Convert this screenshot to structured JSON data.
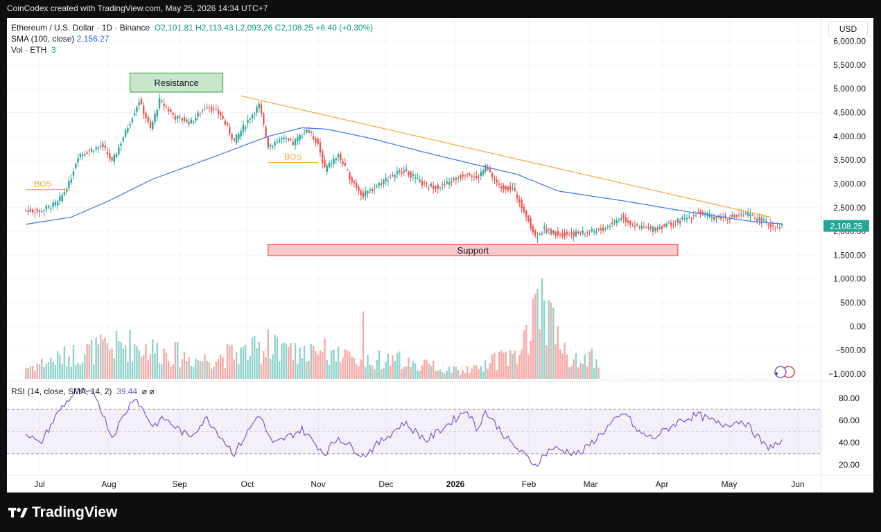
{
  "header": {
    "created_text": "CoinCodex created with TradingView.com, May 25, 2026 14:34 UTC+7"
  },
  "legend": {
    "symbol": "Ethereum / U.S. Dollar · 1D · Binance",
    "ohlc": "O2,101.81  H2,113.43  L2,093.26  C2,108.25  +6.40 (+0.30%)",
    "sma_label": "SMA (100, close)",
    "sma_value": "2,156.27",
    "vol_label": "Vol · ETH",
    "vol_value": "3",
    "rsi_label": "RSI (14, close, SMA, 14, 2)",
    "rsi_value": "39.44",
    "rsi_icons": "⌀ ⌀"
  },
  "currency_button": "USD",
  "brand": {
    "name": "TradingView",
    "logo_icon": "tradingview-logo-icon"
  },
  "colors": {
    "up": "#26a69a",
    "down": "#ef5350",
    "sma": "#4a7bea",
    "trend": "#f7a63b",
    "rsi": "#7e57c2",
    "support": "#ef5350",
    "resistance": "#4caf50"
  },
  "chart_data": [
    {
      "type": "candlestick",
      "title": "Ethereum / U.S. Dollar · 1D · Binance",
      "ylabel": "USD",
      "ylim": [
        -1000,
        6000
      ],
      "y_ticks": [
        "6,000.00",
        "5,500.00",
        "5,000.00",
        "4,500.00",
        "4,000.00",
        "3,500.00",
        "3,000.00",
        "2,500.00",
        "2,000.00",
        "1,500.00",
        "1,000.00",
        "500.00",
        "0.00",
        "−500.00",
        "−1,000.00"
      ],
      "x_ticks": [
        "Jul",
        "Aug",
        "Sep",
        "Oct",
        "Nov",
        "Dec",
        "2026",
        "Feb",
        "Mar",
        "Apr",
        "May",
        "Jun"
      ],
      "close_anchors": [
        {
          "date": "2025-06-25",
          "close": 2450
        },
        {
          "date": "2025-07-01",
          "close": 2420
        },
        {
          "date": "2025-07-09",
          "close": 2600
        },
        {
          "date": "2025-07-14",
          "close": 3000
        },
        {
          "date": "2025-07-18",
          "close": 3600
        },
        {
          "date": "2025-07-23",
          "close": 3700
        },
        {
          "date": "2025-07-29",
          "close": 3800
        },
        {
          "date": "2025-08-02",
          "close": 3450
        },
        {
          "date": "2025-08-09",
          "close": 4200
        },
        {
          "date": "2025-08-14",
          "close": 4750
        },
        {
          "date": "2025-08-19",
          "close": 4150
        },
        {
          "date": "2025-08-23",
          "close": 4750
        },
        {
          "date": "2025-08-30",
          "close": 4400
        },
        {
          "date": "2025-09-06",
          "close": 4300
        },
        {
          "date": "2025-09-13",
          "close": 4650
        },
        {
          "date": "2025-09-19",
          "close": 4450
        },
        {
          "date": "2025-09-25",
          "close": 3900
        },
        {
          "date": "2025-10-02",
          "close": 4400
        },
        {
          "date": "2025-10-06",
          "close": 4650
        },
        {
          "date": "2025-10-10",
          "close": 3800
        },
        {
          "date": "2025-10-16",
          "close": 3950
        },
        {
          "date": "2025-10-21",
          "close": 3850
        },
        {
          "date": "2025-10-27",
          "close": 4150
        },
        {
          "date": "2025-11-01",
          "close": 3850
        },
        {
          "date": "2025-11-04",
          "close": 3300
        },
        {
          "date": "2025-11-10",
          "close": 3600
        },
        {
          "date": "2025-11-15",
          "close": 3150
        },
        {
          "date": "2025-11-21",
          "close": 2750
        },
        {
          "date": "2025-11-28",
          "close": 3000
        },
        {
          "date": "2025-12-03",
          "close": 3150
        },
        {
          "date": "2025-12-09",
          "close": 3300
        },
        {
          "date": "2025-12-14",
          "close": 3100
        },
        {
          "date": "2025-12-19",
          "close": 2950
        },
        {
          "date": "2025-12-26",
          "close": 2950
        },
        {
          "date": "2026-01-06",
          "close": 3250
        },
        {
          "date": "2026-01-10",
          "close": 3100
        },
        {
          "date": "2026-01-14",
          "close": 3350
        },
        {
          "date": "2026-01-20",
          "close": 2950
        },
        {
          "date": "2026-01-26",
          "close": 2900
        },
        {
          "date": "2026-01-31",
          "close": 2450
        },
        {
          "date": "2026-02-05",
          "close": 1900
        },
        {
          "date": "2026-02-09",
          "close": 2050
        },
        {
          "date": "2026-02-15",
          "close": 1950
        },
        {
          "date": "2026-02-22",
          "close": 1950
        },
        {
          "date": "2026-03-01",
          "close": 1980
        },
        {
          "date": "2026-03-07",
          "close": 2050
        },
        {
          "date": "2026-03-15",
          "close": 2300
        },
        {
          "date": "2026-03-22",
          "close": 2100
        },
        {
          "date": "2026-03-29",
          "close": 2050
        },
        {
          "date": "2026-04-05",
          "close": 2150
        },
        {
          "date": "2026-04-12",
          "close": 2250
        },
        {
          "date": "2026-04-18",
          "close": 2400
        },
        {
          "date": "2026-04-24",
          "close": 2300
        },
        {
          "date": "2026-05-02",
          "close": 2300
        },
        {
          "date": "2026-05-10",
          "close": 2350
        },
        {
          "date": "2026-05-15",
          "close": 2250
        },
        {
          "date": "2026-05-20",
          "close": 2120
        },
        {
          "date": "2026-05-25",
          "close": 2108.25
        }
      ],
      "last_price": "2,108.25",
      "sma_anchors": [
        {
          "date": "2025-06-25",
          "value": 2150
        },
        {
          "date": "2025-07-15",
          "value": 2300
        },
        {
          "date": "2025-08-01",
          "value": 2650
        },
        {
          "date": "2025-08-20",
          "value": 3100
        },
        {
          "date": "2025-09-15",
          "value": 3550
        },
        {
          "date": "2025-10-10",
          "value": 4000
        },
        {
          "date": "2025-10-25",
          "value": 4180
        },
        {
          "date": "2025-11-05",
          "value": 4150
        },
        {
          "date": "2025-11-25",
          "value": 3950
        },
        {
          "date": "2025-12-15",
          "value": 3700
        },
        {
          "date": "2026-01-10",
          "value": 3400
        },
        {
          "date": "2026-01-28",
          "value": 3200
        },
        {
          "date": "2026-02-15",
          "value": 2850
        },
        {
          "date": "2026-03-15",
          "value": 2650
        },
        {
          "date": "2026-04-15",
          "value": 2400
        },
        {
          "date": "2026-05-10",
          "value": 2220
        },
        {
          "date": "2026-05-25",
          "value": 2156.27
        }
      ],
      "annotations": [
        {
          "type": "box",
          "label": "Resistance",
          "from": "2025-08-10",
          "to": "2025-09-20",
          "y_top": 5330,
          "y_bottom": 4930
        },
        {
          "type": "box",
          "label": "Support",
          "from": "2025-10-10",
          "to": "2026-04-09",
          "y_top": 1730,
          "y_bottom": 1490
        },
        {
          "type": "line",
          "label": "BOS",
          "from": "2025-06-25",
          "to": "2025-07-14",
          "y": 2880
        },
        {
          "type": "line",
          "label": "BOS",
          "from": "2025-10-10",
          "to": "2025-11-01",
          "y": 3450
        },
        {
          "type": "trendline",
          "label": "",
          "from": {
            "date": "2025-09-28",
            "value": 4850
          },
          "to": {
            "date": "2026-05-20",
            "value": 2300
          }
        }
      ]
    },
    {
      "type": "bar",
      "title": "Vol · ETH",
      "unit": "ETH",
      "note": "relative daily volume, scaled 0-1",
      "anchors": [
        {
          "date": "2025-06-25",
          "value": 0.15
        },
        {
          "date": "2025-07-20",
          "value": 0.35
        },
        {
          "date": "2025-08-10",
          "value": 0.45
        },
        {
          "date": "2025-09-10",
          "value": 0.25
        },
        {
          "date": "2025-10-10",
          "value": 0.4
        },
        {
          "date": "2025-11-05",
          "value": 0.3
        },
        {
          "date": "2025-12-15",
          "value": 0.22
        },
        {
          "date": "2026-01-05",
          "value": 0.1
        },
        {
          "date": "2026-01-30",
          "value": 0.35
        },
        {
          "date": "2026-02-06",
          "value": 1.0
        },
        {
          "date": "2026-02-20",
          "value": 0.3
        },
        {
          "date": "2026-03-05",
          "value": 0.25
        }
      ],
      "spikes": [
        {
          "date": "2025-10-10",
          "value": 0.55
        },
        {
          "date": "2025-11-04",
          "value": 0.45
        },
        {
          "date": "2025-11-21",
          "value": 0.75
        },
        {
          "date": "2026-02-01",
          "value": 0.6
        },
        {
          "date": "2026-02-04",
          "value": 0.9
        },
        {
          "date": "2026-02-06",
          "value": 1.0
        },
        {
          "date": "2026-02-12",
          "value": 0.85
        }
      ],
      "shown_until": "2026-03-05"
    },
    {
      "type": "line",
      "title": "RSI (14, close, SMA, 14, 2)",
      "ylim": [
        15,
        90
      ],
      "y_ticks": [
        "80.00",
        "60.00",
        "40.00",
        "20.00"
      ],
      "band": [
        30,
        70
      ],
      "midline": 50,
      "current": 39.44,
      "anchors": [
        {
          "date": "2025-06-25",
          "value": 50
        },
        {
          "date": "2025-07-01",
          "value": 38
        },
        {
          "date": "2025-07-10",
          "value": 70
        },
        {
          "date": "2025-07-18",
          "value": 88
        },
        {
          "date": "2025-07-26",
          "value": 82
        },
        {
          "date": "2025-08-02",
          "value": 45
        },
        {
          "date": "2025-08-12",
          "value": 82
        },
        {
          "date": "2025-08-20",
          "value": 55
        },
        {
          "date": "2025-08-25",
          "value": 62
        },
        {
          "date": "2025-09-05",
          "value": 45
        },
        {
          "date": "2025-09-13",
          "value": 62
        },
        {
          "date": "2025-09-25",
          "value": 30
        },
        {
          "date": "2025-10-06",
          "value": 66
        },
        {
          "date": "2025-10-12",
          "value": 38
        },
        {
          "date": "2025-10-25",
          "value": 52
        },
        {
          "date": "2025-11-04",
          "value": 30
        },
        {
          "date": "2025-11-10",
          "value": 45
        },
        {
          "date": "2025-11-21",
          "value": 28
        },
        {
          "date": "2025-12-09",
          "value": 58
        },
        {
          "date": "2025-12-19",
          "value": 42
        },
        {
          "date": "2026-01-06",
          "value": 70
        },
        {
          "date": "2026-01-10",
          "value": 52
        },
        {
          "date": "2026-01-14",
          "value": 68
        },
        {
          "date": "2026-01-25",
          "value": 40
        },
        {
          "date": "2026-02-05",
          "value": 20
        },
        {
          "date": "2026-02-12",
          "value": 35
        },
        {
          "date": "2026-02-25",
          "value": 30
        },
        {
          "date": "2026-03-10",
          "value": 56
        },
        {
          "date": "2026-03-17",
          "value": 67
        },
        {
          "date": "2026-03-22",
          "value": 50
        },
        {
          "date": "2026-03-29",
          "value": 44
        },
        {
          "date": "2026-04-10",
          "value": 60
        },
        {
          "date": "2026-04-18",
          "value": 65
        },
        {
          "date": "2026-04-28",
          "value": 56
        },
        {
          "date": "2026-05-08",
          "value": 60
        },
        {
          "date": "2026-05-18",
          "value": 36
        },
        {
          "date": "2026-05-25",
          "value": 39.44
        }
      ]
    }
  ]
}
